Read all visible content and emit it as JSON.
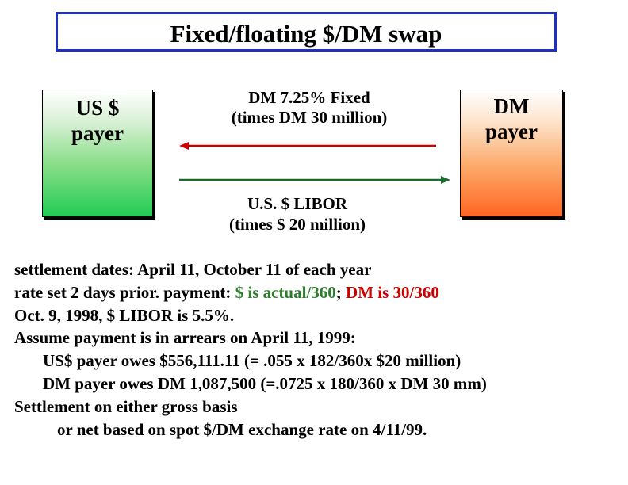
{
  "title": "Fixed/floating $/DM swap",
  "parties": {
    "us": {
      "line1": "US $",
      "line2": "payer"
    },
    "dm": {
      "line1": "DM",
      "line2": "payer"
    }
  },
  "flows": {
    "fixed": {
      "line1": "DM 7.25% Fixed",
      "line2": "(times DM 30 million)",
      "direction": "to US $ payer",
      "color": "#cc0000"
    },
    "floating": {
      "line1": "U.S. $ LIBOR",
      "line2": "(times $ 20 million)",
      "direction": "to DM payer",
      "color": "#1f6b2a"
    }
  },
  "notes": {
    "line1": "settlement dates:  April 11, October 11 of each year",
    "line2_a": "rate set 2 days prior.   payment: ",
    "line2_b": "$ is actual/360",
    "line2_c": ";  ",
    "line2_d": "DM is 30/360",
    "line3": "Oct. 9, 1998,  $ LIBOR  is 5.5%.",
    "line4": "Assume  payment  is in arrears on April 11, 1999:",
    "line5": "US$ payer owes $556,111.11 (= .055 x 182/360x $20 million)",
    "line6": "DM payer owes  DM 1,087,500 (=.0725 x 180/360 x DM 30 mm)",
    "line7": "Settlement on either gross basis",
    "line8": "or net based on spot $/DM exchange rate on 4/11/99."
  },
  "colors": {
    "title_border": "#1f2fbf",
    "us_fill": "#22cc55",
    "dm_fill": "#ff6622",
    "green_text": "#2e7d2e",
    "red_text": "#cc0000"
  }
}
